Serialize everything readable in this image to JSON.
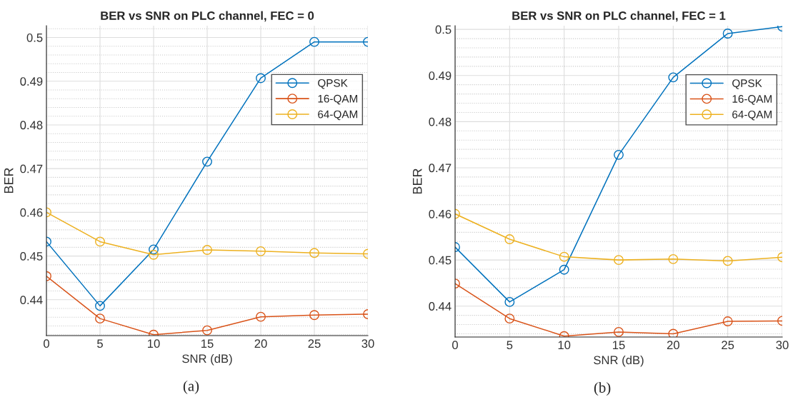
{
  "chart_data": [
    {
      "type": "line",
      "title": "BER vs SNR on PLC channel, FEC = 0",
      "xlabel": "SNR (dB)",
      "ylabel": "BER",
      "annotations": [
        "(a)"
      ],
      "x": [
        0,
        5,
        10,
        15,
        20,
        25,
        30
      ],
      "series": [
        {
          "name": "QPSK",
          "color": "#0072bd",
          "values": [
            0.4533,
            0.4386,
            0.4515,
            0.4716,
            0.4907,
            0.499,
            0.499
          ]
        },
        {
          "name": "16-QAM",
          "color": "#d95319",
          "values": [
            0.4454,
            0.4357,
            0.432,
            0.433,
            0.4361,
            0.4365,
            0.4367
          ]
        },
        {
          "name": "64-QAM",
          "color": "#edb120",
          "values": [
            0.46,
            0.4533,
            0.4503,
            0.4514,
            0.4511,
            0.4507,
            0.4505
          ]
        }
      ],
      "xlim": [
        0,
        30
      ],
      "xticks": [
        0,
        5,
        10,
        15,
        20,
        25,
        30
      ],
      "ylim": [
        0.4318,
        0.5027
      ],
      "yticks": [
        0.44,
        0.45,
        0.46,
        0.47,
        0.48,
        0.49,
        0.5
      ],
      "grid": true,
      "legend": "top right",
      "marker": "circle",
      "line_style": "solid"
    },
    {
      "type": "line",
      "title": "BER vs SNR on PLC channel, FEC = 1",
      "xlabel": "SNR (dB)",
      "ylabel": "BER",
      "annotations": [
        "(b)"
      ],
      "x": [
        0,
        5,
        10,
        15,
        20,
        25,
        30
      ],
      "series": [
        {
          "name": "QPSK",
          "color": "#0072bd",
          "values": [
            0.4528,
            0.4409,
            0.4479,
            0.4728,
            0.4896,
            0.4991,
            0.5006
          ]
        },
        {
          "name": "16-QAM",
          "color": "#d95319",
          "values": [
            0.4449,
            0.4373,
            0.4335,
            0.4344,
            0.434,
            0.4367,
            0.4368
          ]
        },
        {
          "name": "64-QAM",
          "color": "#edb120",
          "values": [
            0.46,
            0.4545,
            0.4507,
            0.45,
            0.4502,
            0.4498,
            0.4506
          ]
        }
      ],
      "xlim": [
        0,
        30
      ],
      "xticks": [
        0,
        5,
        10,
        15,
        20,
        25,
        30
      ],
      "ylim": [
        0.4333,
        0.5008
      ],
      "yticks": [
        0.44,
        0.45,
        0.46,
        0.47,
        0.48,
        0.49,
        0.5
      ],
      "grid": true,
      "legend": "top right",
      "marker": "circle",
      "line_style": "solid"
    }
  ]
}
